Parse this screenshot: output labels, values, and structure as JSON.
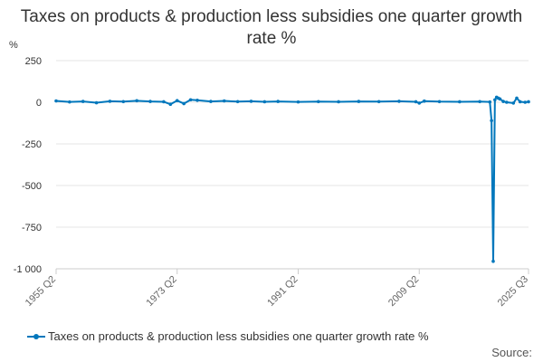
{
  "chart_data": {
    "type": "line",
    "title": "Taxes on products & production less subsidies one quarter growth rate %",
    "ylabel": "%",
    "xlabel": "",
    "ylim": [
      -1000,
      250
    ],
    "yticks": [
      250,
      0,
      -250,
      -500,
      -750,
      -1000
    ],
    "ytick_labels": [
      "250",
      "0",
      "-250",
      "-500",
      "-750",
      "-1 000"
    ],
    "xticks": [
      "1955 Q2",
      "1973 Q2",
      "1991 Q2",
      "2009 Q2",
      "2025 Q3"
    ],
    "grid": true,
    "legend_position": "bottom",
    "series": [
      {
        "name": "Taxes on products & production less subsidies one quarter growth rate %",
        "color": "#0077bc",
        "x": [
          "1955 Q2",
          "1957 Q2",
          "1959 Q2",
          "1961 Q2",
          "1963 Q2",
          "1965 Q2",
          "1967 Q2",
          "1969 Q2",
          "1971 Q2",
          "1972 Q2",
          "1973 Q2",
          "1974 Q2",
          "1975 Q2",
          "1976 Q2",
          "1978 Q2",
          "1980 Q2",
          "1982 Q2",
          "1984 Q2",
          "1986 Q2",
          "1988 Q2",
          "1991 Q2",
          "1994 Q2",
          "1997 Q2",
          "2000 Q2",
          "2003 Q2",
          "2006 Q2",
          "2008 Q4",
          "2009 Q2",
          "2010 Q1",
          "2012 Q2",
          "2015 Q2",
          "2018 Q2",
          "2019 Q4",
          "2020 Q1",
          "2020 Q2",
          "2020 Q3",
          "2020 Q4",
          "2021 Q1",
          "2021 Q2",
          "2021 Q4",
          "2022 Q2",
          "2023 Q2",
          "2023 Q4",
          "2024 Q2",
          "2025 Q1",
          "2025 Q3"
        ],
        "values": [
          8,
          2,
          5,
          -3,
          6,
          4,
          9,
          5,
          3,
          -12,
          10,
          -8,
          15,
          12,
          5,
          8,
          4,
          6,
          3,
          5,
          2,
          4,
          3,
          5,
          4,
          6,
          3,
          -5,
          7,
          4,
          3,
          4,
          2,
          -110,
          -955,
          15,
          30,
          25,
          20,
          5,
          0,
          -5,
          25,
          3,
          0,
          3
        ]
      }
    ]
  },
  "footer": {
    "source_label": "Source:"
  }
}
